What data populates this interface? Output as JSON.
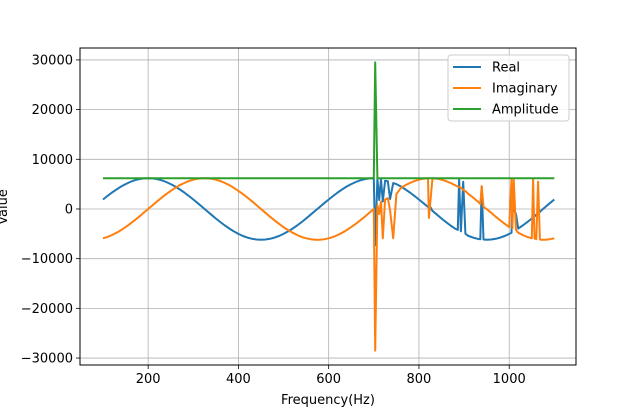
{
  "chart_data": {
    "type": "line",
    "title": "",
    "xlabel": "Frequency(Hz)",
    "ylabel": "Value",
    "xlim": [
      49,
      1148
    ],
    "ylim": [
      -31400,
      32400
    ],
    "xticks": [
      200,
      400,
      600,
      800,
      1000
    ],
    "yticks": [
      -30000,
      -20000,
      -10000,
      0,
      10000,
      20000,
      30000
    ],
    "xtick_labels": [
      "200",
      "400",
      "600",
      "800",
      "1000"
    ],
    "ytick_labels": [
      "−30000",
      "−20000",
      "−10000",
      "0",
      "10000",
      "20000",
      "30000"
    ],
    "grid": true,
    "legend_position": "top-right",
    "x": [
      100,
      110,
      120,
      130,
      140,
      150,
      160,
      170,
      180,
      190,
      200,
      210,
      220,
      230,
      240,
      250,
      260,
      270,
      280,
      290,
      300,
      310,
      320,
      330,
      340,
      350,
      360,
      370,
      380,
      390,
      400,
      410,
      420,
      430,
      440,
      450,
      460,
      470,
      480,
      490,
      500,
      510,
      520,
      530,
      540,
      550,
      560,
      570,
      580,
      590,
      600,
      610,
      620,
      630,
      640,
      650,
      660,
      670,
      680,
      690,
      700,
      703,
      708,
      712,
      716,
      720,
      725,
      731,
      736,
      743,
      750,
      760,
      770,
      780,
      790,
      800,
      810,
      820,
      822,
      830,
      840,
      850,
      860,
      870,
      880,
      886,
      889,
      893,
      898,
      903,
      910,
      920,
      930,
      936,
      939,
      943,
      950,
      960,
      970,
      980,
      990,
      1000,
      1005,
      1007,
      1010,
      1015,
      1020,
      1030,
      1040,
      1050,
      1053,
      1056,
      1060,
      1064,
      1068,
      1070,
      1080,
      1090,
      1100
    ],
    "series": [
      {
        "name": "Real",
        "color": "#1f77b4",
        "values": [
          1916,
          2641,
          3323,
          3949,
          4520,
          5016,
          5431,
          5766,
          6008,
          6150,
          6200,
          6150,
          6008,
          5766,
          5431,
          5016,
          4520,
          3949,
          3323,
          2641,
          1916,
          1159,
          391,
          -391,
          -1159,
          -1916,
          -2641,
          -3323,
          -3949,
          -4520,
          -5016,
          -5431,
          -5766,
          -6008,
          -6150,
          -6200,
          -6150,
          -6008,
          -5766,
          -5431,
          -5016,
          -4520,
          -3949,
          -3323,
          -2641,
          -1916,
          -1159,
          -391,
          391,
          1159,
          1916,
          2641,
          3323,
          3949,
          4520,
          5016,
          5431,
          5766,
          6008,
          6150,
          6200,
          -7300,
          6150,
          1800,
          6000,
          1500,
          5700,
          5600,
          2000,
          5200,
          5000,
          4520,
          3949,
          3323,
          2641,
          1916,
          1159,
          391,
          900,
          -391,
          -1159,
          -1916,
          -2641,
          -3323,
          -3949,
          -4200,
          6000,
          -4500,
          5500,
          -5000,
          -5431,
          -5766,
          -6008,
          -6100,
          4500,
          -6150,
          -6200,
          -6150,
          -6008,
          -5766,
          -5431,
          -5016,
          -4800,
          200,
          -200,
          -1000,
          -3949,
          -3323,
          -2641,
          -1916,
          -1700,
          -1500,
          -1159,
          -900,
          -600,
          -391,
          391,
          1159,
          1916
        ]
      },
      {
        "name": "Imaginary",
        "color": "#ff7f0e",
        "values": [
          -5896,
          -5611,
          -5233,
          -4780,
          -4247,
          -3646,
          -2988,
          -2282,
          -1544,
          -775,
          0,
          775,
          1544,
          2282,
          2988,
          3646,
          4247,
          4780,
          5233,
          5611,
          5896,
          6088,
          6188,
          6188,
          6088,
          5896,
          5611,
          5233,
          4780,
          4247,
          3646,
          2988,
          2282,
          1544,
          775,
          0,
          -775,
          -1544,
          -2282,
          -2988,
          -3646,
          -4247,
          -4780,
          -5233,
          -5611,
          -5896,
          -6088,
          -6188,
          -6188,
          -6088,
          -5896,
          -5611,
          -5233,
          -4780,
          -4247,
          -3646,
          -2988,
          -2282,
          -1544,
          -775,
          0,
          -28500,
          800,
          -1000,
          1500,
          -5900,
          1900,
          2200,
          -300,
          -5900,
          3000,
          4247,
          4780,
          5233,
          5611,
          5896,
          6088,
          6188,
          -1800,
          6188,
          6088,
          5896,
          5611,
          5233,
          4780,
          4500,
          4400,
          4300,
          3800,
          3600,
          2988,
          2282,
          1544,
          1000,
          4600,
          450,
          0,
          -775,
          -1544,
          -2282,
          -2988,
          -3646,
          6000,
          -3900,
          6000,
          -4200,
          -4780,
          -5233,
          -5611,
          -5896,
          6000,
          -5950,
          -6088,
          5500,
          -6100,
          -6188,
          -6188,
          -6088,
          -5896
        ]
      },
      {
        "name": "Amplitude",
        "color": "#2ca02c",
        "values": [
          6200,
          6200,
          6200,
          6200,
          6200,
          6200,
          6200,
          6200,
          6200,
          6200,
          6200,
          6200,
          6200,
          6200,
          6200,
          6200,
          6200,
          6200,
          6200,
          6200,
          6200,
          6200,
          6200,
          6200,
          6200,
          6200,
          6200,
          6200,
          6200,
          6200,
          6200,
          6200,
          6200,
          6200,
          6200,
          6200,
          6200,
          6200,
          6200,
          6200,
          6200,
          6200,
          6200,
          6200,
          6200,
          6200,
          6200,
          6200,
          6200,
          6200,
          6200,
          6200,
          6200,
          6200,
          6200,
          6200,
          6200,
          6200,
          6200,
          6200,
          6200,
          29500,
          6200,
          6200,
          6200,
          6200,
          6200,
          6200,
          6200,
          6200,
          6200,
          6200,
          6200,
          6200,
          6200,
          6200,
          6200,
          6200,
          6200,
          6200,
          6200,
          6200,
          6200,
          6200,
          6200,
          6200,
          6200,
          6200,
          6200,
          6200,
          6200,
          6200,
          6200,
          6200,
          6200,
          6200,
          6200,
          6200,
          6200,
          6200,
          6200,
          6200,
          6200,
          6200,
          6200,
          6200,
          6200,
          6200,
          6200,
          6200,
          6200,
          6200,
          6200,
          6200,
          6200,
          6200,
          6200,
          6200,
          6200
        ]
      }
    ]
  }
}
